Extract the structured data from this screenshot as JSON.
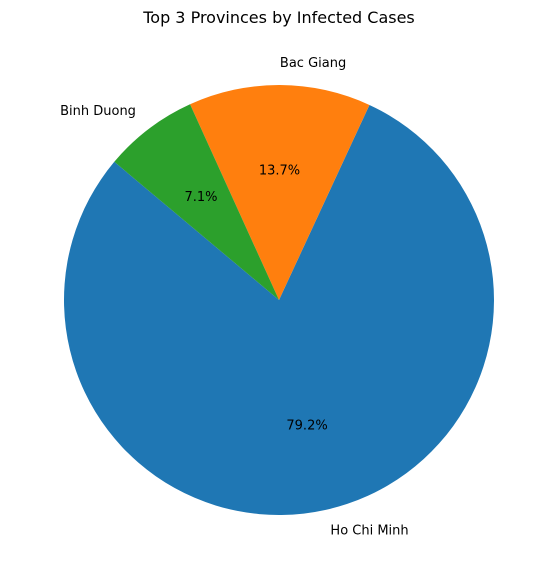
{
  "chart_data": {
    "type": "pie",
    "title": "Top 3 Provinces by Infected Cases",
    "series": [
      {
        "name": "Ho Chi Minh",
        "value": 79.2,
        "pct_label": "79.2%",
        "color": "#1f77b4"
      },
      {
        "name": "Bac Giang",
        "value": 13.7,
        "pct_label": "13.7%",
        "color": "#ff7f0e"
      },
      {
        "name": "Binh Duong",
        "value": 7.1,
        "pct_label": "7.1%",
        "color": "#2ca02c"
      }
    ],
    "start_angle_deg": 140,
    "direction": "counterclockwise",
    "legend": "none"
  }
}
